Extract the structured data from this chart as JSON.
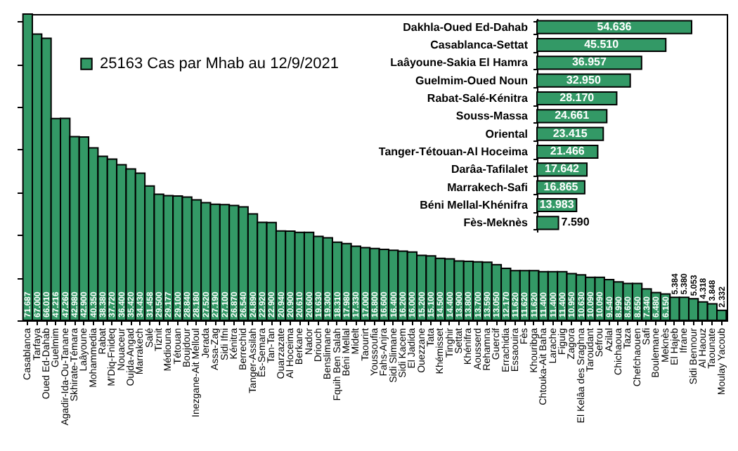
{
  "chart_data": [
    {
      "type": "bar",
      "categories": [
        "Casablanca",
        "Tarfaya",
        "Oued Ed-Dahab",
        "Guelmim",
        "Agadir-Ida-Ou-Tanane",
        "Skhirate-Témara",
        "Laâyoune",
        "Mohammedia",
        "Rabat",
        "M'Diq-Fnideq",
        "Nouaceur",
        "Oujda-Angad",
        "Marrakech",
        "Salé",
        "Tiznit",
        "Médiouna",
        "Tétouan",
        "Boujdour",
        "Inezgane-Ait Melloul",
        "Jerada",
        "Assa-Zag",
        "Sidi Ifni",
        "Kénitra",
        "Berrechid",
        "Tanger-Assilah",
        "Es-Semara",
        "Tan-Tan",
        "Ouarzazate",
        "Al Hoceima",
        "Berkane",
        "Nador",
        "Driouch",
        "Benslimane",
        "Fquih Ben Salah",
        "Béni Mellal",
        "Midelt",
        "Taourirt",
        "Youssoufia",
        "Fahs-Anjra",
        "Sidi Slimane",
        "Sidi Kacem",
        "El Jadida",
        "Ouezzane",
        "Tata",
        "Khémisset",
        "Tinghir",
        "Settat",
        "Khénifra",
        "Aousserd",
        "Rehamna",
        "Guercif",
        "Errachidia",
        "Essaouira",
        "Fès",
        "Khouribga",
        "Chtouka-Ait Baha",
        "Larache",
        "Figuig",
        "Zagora",
        "El Kelâa des Sraghna",
        "Taroudant",
        "Sefrou",
        "Azilal",
        "Chichaoua",
        "Taza",
        "Chefchaouen",
        "Safi",
        "Boulemane",
        "Meknès",
        "El Hajeb",
        "Ifrane",
        "Sidi Bennour",
        "Al Haouz",
        "Taounate",
        "Moulay Yacoub"
      ],
      "series": [
        {
          "name": "25163 Cas par Mhab au 12/9/2021",
          "color": "#339966",
          "values": [
            71687,
            67000,
            66010,
            47216,
            47260,
            42980,
            42900,
            40350,
            38380,
            37720,
            36400,
            35420,
            34430,
            31458,
            29500,
            29177,
            29100,
            28840,
            28180,
            27520,
            27190,
            27100,
            26870,
            26540,
            24890,
            22920,
            22900,
            20940,
            20900,
            20610,
            20600,
            19630,
            19300,
            18310,
            17980,
            17330,
            17000,
            16800,
            16600,
            16400,
            16200,
            16000,
            15200,
            15100,
            14500,
            14400,
            13900,
            13800,
            13700,
            13590,
            13050,
            12170,
            11620,
            11620,
            11620,
            11400,
            11400,
            11400,
            10950,
            10630,
            10090,
            10090,
            9540,
            8990,
            8650,
            8650,
            7340,
            6480,
            6150,
            5384,
            5380,
            5053,
            4318,
            3848,
            2332
          ],
          "value_labels": [
            "71.687",
            "67.000",
            "66.010",
            "47.216",
            "47.260",
            "42.980",
            "42.900",
            "40.350",
            "38.380",
            "37.720",
            "36.400",
            "35.420",
            "34.430",
            "31.458",
            "29.500",
            "29.177",
            "29.100",
            "28.840",
            "28.180",
            "27.520",
            "27.190",
            "27.100",
            "26.870",
            "26.540",
            "24.890",
            "22.920",
            "22.900",
            "20.940",
            "20.900",
            "20.610",
            "20.600",
            "19.630",
            "19.300",
            "18.310",
            "17.980",
            "17.330",
            "17.000",
            "16.800",
            "16.600",
            "16.400",
            "16.200",
            "16.000",
            "15.200",
            "15.100",
            "14.500",
            "14.400",
            "13.900",
            "13.800",
            "13.700",
            "13.590",
            "13.050",
            "12.170",
            "11.620",
            "11.620",
            "11.620",
            "11.400",
            "11.400",
            "11.400",
            "10.950",
            "10.630",
            "10.090",
            "10.090",
            "9.540",
            "8.990",
            "8.650",
            "8.650",
            "7.340",
            "6.480",
            "6.150",
            "5.384",
            "5.380",
            "5.053",
            "4.318",
            "3.848",
            "2.332"
          ]
        }
      ],
      "tick_labels": "x",
      "legend": "top left"
    },
    {
      "type": "bar",
      "orientation": "horizontal",
      "categories": [
        "Dakhla-Oued Ed-Dahab",
        "Casablanca-Settat",
        "Laâyoune-Sakia El Hamra",
        "Guelmim-Oued Noun",
        "Rabat-Salé-Kénitra",
        "Souss-Massa",
        "Oriental",
        "Tanger-Tétouan-Al Hoceima",
        "Darâa-Tafilalet",
        "Marrakech-Safi",
        "Béni Mellal-Khénifra",
        "Fès-Meknès"
      ],
      "values": [
        54636,
        45510,
        36957,
        32950,
        28170,
        24661,
        23415,
        21466,
        17642,
        16865,
        13983,
        7590
      ],
      "value_labels": [
        "54.636",
        "45.510",
        "36.957",
        "32.950",
        "28.170",
        "24.661",
        "23.415",
        "21.466",
        "17.642",
        "16.865",
        "13.983",
        "7.590"
      ],
      "color": "#339966",
      "tick_labels": "y"
    }
  ]
}
